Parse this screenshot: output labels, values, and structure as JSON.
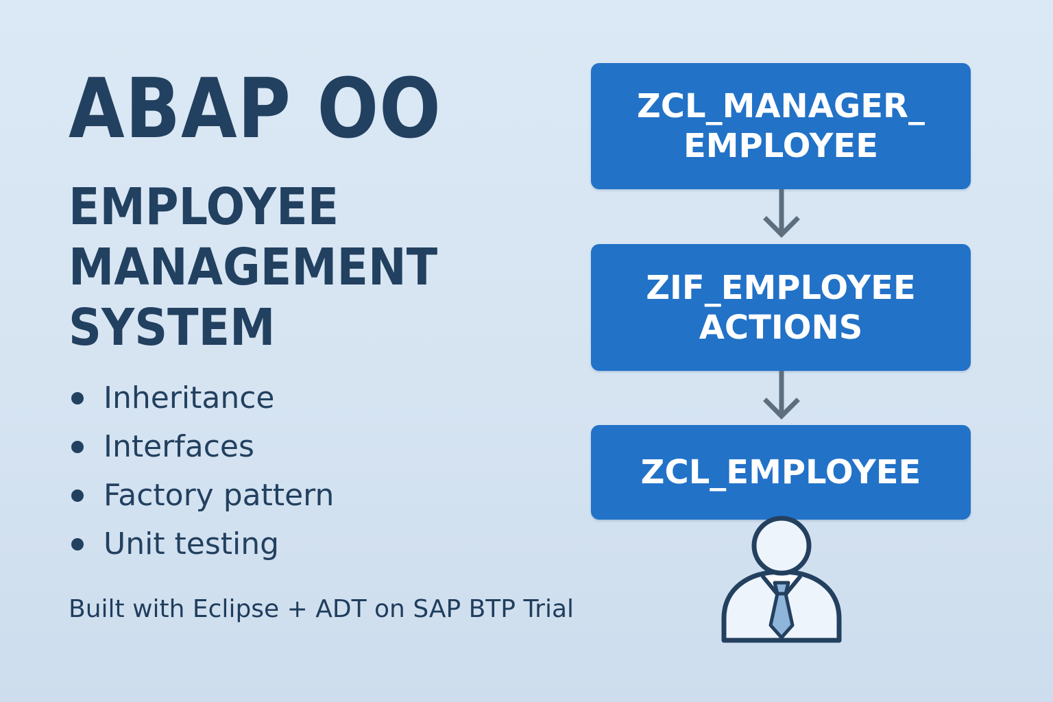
{
  "title": {
    "main": "ABAP OO",
    "sub_lines": [
      "EMPLOYEE",
      "MANAGEMENT",
      "SYSTEM"
    ]
  },
  "features": [
    "Inheritance",
    "Interfaces",
    "Factory pattern",
    "Unit testing"
  ],
  "footer_note": "Built with Eclipse + ADT on SAP BTP Trial",
  "diagram": {
    "boxes": [
      {
        "lines": [
          "ZCL_MANAGER_",
          "EMPLOYEE"
        ]
      },
      {
        "lines": [
          "ZIF_EMPLOYEE",
          "ACTIONS"
        ]
      },
      {
        "lines": [
          "ZCL_EMPLOYEE"
        ]
      }
    ],
    "arrows": [
      "arrow-down-icon",
      "arrow-down-icon"
    ],
    "avatar_icon": "employee-avatar-icon"
  },
  "colors": {
    "background": "#d6e4f2",
    "text": "#22405f",
    "box": "#2272c7",
    "box_text": "#ffffff",
    "arrow": "#5d6f7f",
    "tie": "#8fb5da"
  }
}
